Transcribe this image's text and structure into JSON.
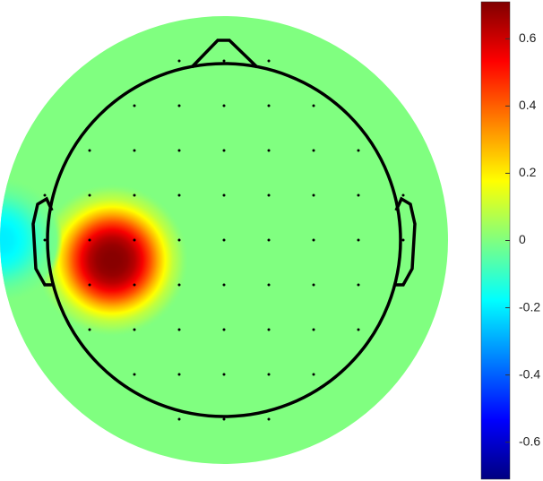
{
  "chart_data": {
    "type": "topoplot",
    "colormap": "jet",
    "x": [
      -0.5,
      -1.0
    ],
    "y": [
      -0.09,
      0.0
    ],
    "values": [
      0.7,
      -0.2
    ],
    "clim": [
      -0.71,
      0.71
    ],
    "cticks": [
      0.6,
      0.4,
      0.2,
      0,
      -0.2,
      -0.4,
      -0.6
    ]
  }
}
